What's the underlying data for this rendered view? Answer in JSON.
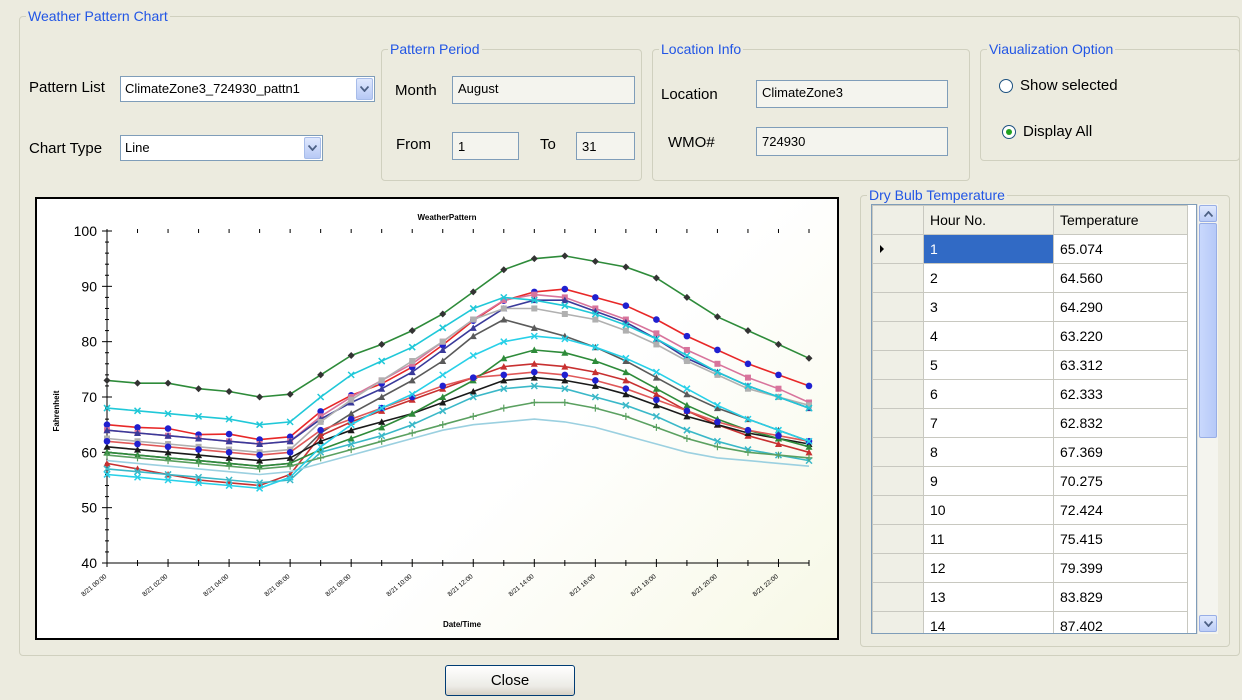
{
  "window": {
    "title": "Weather Pattern Chart"
  },
  "pattern": {
    "list_label": "Pattern List",
    "list_value": "ClimateZone3_724930_pattn1",
    "chart_type_label": "Chart Type",
    "chart_type_value": "Line"
  },
  "period": {
    "title": "Pattern Period",
    "month_label": "Month",
    "month_value": "August",
    "from_label": "From",
    "from_value": "1",
    "to_label": "To",
    "to_value": "31"
  },
  "location": {
    "title": "Location Info",
    "location_label": "Location",
    "location_value": "ClimateZone3",
    "wmo_label": "WMO#",
    "wmo_value": "724930"
  },
  "viz": {
    "title": "Viaualization Option",
    "show_selected": "Show selected",
    "display_all": "Display All",
    "selected": "display_all"
  },
  "dry_bulb": {
    "title": "Dry Bulb Temperature",
    "headers": [
      "Hour No.",
      "Temperature"
    ],
    "rows": [
      [
        "1",
        "65.074"
      ],
      [
        "2",
        "64.560"
      ],
      [
        "3",
        "64.290"
      ],
      [
        "4",
        "63.220"
      ],
      [
        "5",
        "63.312"
      ],
      [
        "6",
        "62.333"
      ],
      [
        "7",
        "62.832"
      ],
      [
        "8",
        "67.369"
      ],
      [
        "9",
        "70.275"
      ],
      [
        "10",
        "72.424"
      ],
      [
        "11",
        "75.415"
      ],
      [
        "12",
        "79.399"
      ],
      [
        "13",
        "83.829"
      ],
      [
        "14",
        "87.402"
      ]
    ]
  },
  "close_label": "Close",
  "chart_data": {
    "type": "line",
    "title": "WeatherPattern",
    "xlabel": "Date/Time",
    "ylabel": "Fahrenheit",
    "ylim": [
      40,
      100
    ],
    "yticks": [
      "40",
      "50",
      "60",
      "70",
      "80",
      "90",
      "100"
    ],
    "x_tick_labels": [
      "8/21 00:00",
      "8/21 02:00",
      "8/21 04:00",
      "8/21 06:00",
      "8/21 08:00",
      "8/21 10:00",
      "8/21 12:00",
      "8/21 14:00",
      "8/21 16:00",
      "8/21 18:00",
      "8/21 20:00",
      "8/21 22:00"
    ],
    "hours": [
      0,
      1,
      2,
      3,
      4,
      5,
      6,
      7,
      8,
      9,
      10,
      11,
      12,
      13,
      14,
      15,
      16,
      17,
      18,
      19,
      20,
      21,
      22,
      23
    ],
    "series": [
      {
        "color": "#2e8b3a",
        "marker": "diamond",
        "values": [
          73,
          72.5,
          72.5,
          71.5,
          71,
          70,
          70.5,
          74,
          77.5,
          79.5,
          82,
          85,
          89,
          93,
          95,
          95.5,
          94.5,
          93.5,
          91.5,
          88,
          84.5,
          82,
          79.5,
          77
        ]
      },
      {
        "color": "#e82828",
        "marker": "circle",
        "values": [
          65,
          64.5,
          64.3,
          63.2,
          63.3,
          62.3,
          62.8,
          67.4,
          70.3,
          72.4,
          75.4,
          79.4,
          83.8,
          87.4,
          89,
          89.5,
          88,
          86.5,
          84,
          81,
          78.5,
          76,
          74,
          72
        ]
      },
      {
        "color": "#d8749c",
        "marker": "square",
        "values": [
          64,
          63.5,
          63,
          62.5,
          62,
          61.5,
          62,
          66.5,
          70,
          73,
          76,
          80,
          84,
          87.5,
          88.5,
          88,
          86,
          84,
          81.5,
          78.5,
          76,
          73.5,
          71.5,
          69
        ]
      },
      {
        "color": "#3a3a9a",
        "marker": "triangle",
        "values": [
          64,
          63.5,
          63,
          62.5,
          62,
          61.5,
          62,
          66,
          69,
          71.5,
          74.5,
          78.5,
          82.5,
          86,
          87.5,
          87.5,
          85.5,
          83.5,
          80.5,
          77,
          74.5,
          72,
          70,
          68
        ]
      },
      {
        "color": "#b0b0b0",
        "marker": "square",
        "values": [
          62.5,
          62,
          61.5,
          61,
          60.5,
          60,
          60.5,
          65.5,
          69.5,
          73,
          76.5,
          80,
          84,
          86,
          86,
          85,
          84,
          82,
          79.5,
          76.5,
          74,
          71.5,
          70,
          68.5
        ]
      },
      {
        "color": "#20c8d8",
        "marker": "x",
        "values": [
          68,
          67.5,
          67,
          66.5,
          66,
          65,
          65.5,
          70,
          74,
          76.5,
          79,
          82.5,
          86,
          88,
          87.5,
          86.5,
          85,
          83,
          80.5,
          77.5,
          74.5,
          72,
          70,
          68
        ]
      },
      {
        "color": "#5a5a5a",
        "marker": "triangle",
        "values": [
          60,
          59.5,
          59,
          58.5,
          58,
          57.5,
          58,
          63.5,
          67,
          70,
          73,
          76.5,
          81,
          84,
          82.5,
          81,
          79,
          76.5,
          73.5,
          70.5,
          68,
          66,
          64,
          62
        ]
      },
      {
        "color": "#c83030",
        "marker": "triangle",
        "values": [
          58,
          57,
          56,
          55,
          54.5,
          54,
          56,
          63,
          65.5,
          67.5,
          69.5,
          71.5,
          73.5,
          75.5,
          76,
          75.5,
          74.5,
          73,
          70.5,
          67.5,
          65,
          63,
          61.5,
          60
        ]
      },
      {
        "color": "#1a1a1a",
        "marker": "triangle",
        "values": [
          61,
          60.5,
          60,
          59.5,
          59,
          58.5,
          59,
          62,
          64,
          65.5,
          67,
          69,
          71,
          73,
          73.5,
          73,
          72,
          70.5,
          68.5,
          66.5,
          65,
          63.5,
          62.5,
          61.5
        ]
      },
      {
        "color": "#2e8b3a",
        "marker": "triangle",
        "values": [
          60,
          59.5,
          59,
          58.5,
          58,
          57.5,
          58,
          60.5,
          62.5,
          64.5,
          67,
          70,
          73,
          77,
          78.5,
          78,
          76.5,
          74.5,
          71.5,
          68.5,
          66,
          64,
          62.5,
          61
        ]
      },
      {
        "color": "#3ab8c8",
        "marker": "x",
        "values": [
          57,
          56.5,
          56,
          55.5,
          55,
          54.5,
          55,
          60,
          61.5,
          63,
          65,
          67.5,
          70,
          71.5,
          72,
          71.5,
          70,
          68.5,
          66.5,
          64,
          62,
          60.5,
          59.5,
          58.5
        ]
      },
      {
        "color": "#5aa060",
        "marker": "plus",
        "values": [
          59.5,
          59,
          58.5,
          58,
          57.5,
          57,
          57.5,
          59,
          60.5,
          62,
          63.5,
          65,
          66.5,
          68,
          69,
          69,
          68,
          66.5,
          64.5,
          62.5,
          61,
          60,
          59.5,
          59
        ]
      },
      {
        "color": "#9bd0e0",
        "marker": "none",
        "values": [
          58.5,
          58,
          57.5,
          57,
          56.5,
          56,
          56.5,
          58,
          59.5,
          61,
          62.5,
          64,
          65,
          65.5,
          66,
          65.5,
          64.5,
          63,
          61.5,
          60,
          59,
          58.5,
          58,
          57.5
        ]
      },
      {
        "color": "#e05858",
        "marker": "circle",
        "values": [
          62,
          61.5,
          61,
          60.5,
          60,
          59.5,
          60,
          64,
          66,
          68,
          70,
          72,
          73.5,
          74,
          74.5,
          74,
          73,
          71.5,
          69.5,
          67.5,
          65.5,
          64,
          63,
          62
        ]
      },
      {
        "color": "#28d0e8",
        "marker": "x",
        "values": [
          56,
          55.5,
          55,
          54.5,
          54,
          53.5,
          55.5,
          61,
          65,
          68,
          70.5,
          74,
          77.5,
          80,
          81,
          80.5,
          79,
          77,
          74.5,
          71.5,
          68.5,
          66,
          64,
          62
        ]
      }
    ]
  }
}
